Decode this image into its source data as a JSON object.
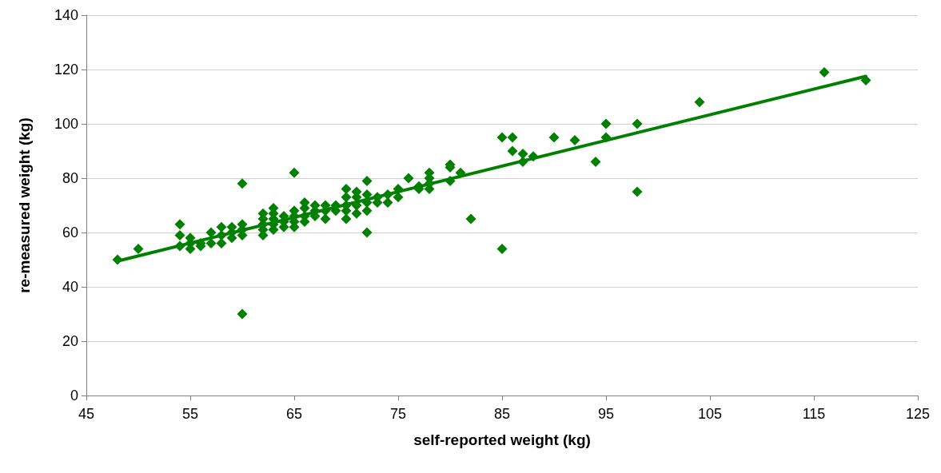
{
  "chart_data": {
    "type": "scatter",
    "xlabel": "self-reported weight (kg)",
    "ylabel": "re-measured weight (kg)",
    "xlim": [
      45,
      125
    ],
    "xticks": [
      45,
      55,
      65,
      75,
      85,
      95,
      105,
      115,
      125
    ],
    "ylim": [
      0,
      140
    ],
    "yticks": [
      0,
      20,
      40,
      60,
      80,
      100,
      120,
      140
    ],
    "grid": "y",
    "series": [
      {
        "color": "#008000",
        "marker": "diamond",
        "x": [
          48,
          50,
          54,
          54,
          54,
          55,
          55,
          55,
          56,
          56,
          57,
          57,
          58,
          58,
          58,
          59,
          59,
          59,
          60,
          60,
          60,
          60,
          60,
          62,
          62,
          62,
          62,
          62,
          63,
          63,
          63,
          63,
          63,
          64,
          64,
          64,
          65,
          65,
          65,
          65,
          65,
          66,
          66,
          66,
          66,
          67,
          67,
          67,
          68,
          68,
          68,
          69,
          69,
          70,
          70,
          70,
          70,
          70,
          71,
          71,
          71,
          71,
          72,
          72,
          72,
          72,
          72,
          73,
          73,
          74,
          74,
          75,
          75,
          76,
          77,
          77,
          78,
          78,
          78,
          78,
          80,
          80,
          80,
          81,
          82,
          85,
          85,
          86,
          86,
          87,
          87,
          88,
          90,
          92,
          94,
          95,
          95,
          98,
          98,
          104,
          116,
          120
        ],
        "values": [
          50,
          54,
          63,
          59,
          55,
          54,
          58,
          56,
          55,
          56,
          56,
          60,
          56,
          59,
          62,
          58,
          60,
          62,
          59,
          61,
          63,
          78,
          30,
          59,
          61,
          63,
          65,
          67,
          61,
          63,
          65,
          67,
          69,
          62,
          64,
          66,
          62,
          64,
          66,
          68,
          82,
          64,
          66,
          69,
          71,
          66,
          68,
          70,
          65,
          68,
          70,
          68,
          70,
          65,
          68,
          70,
          73,
          76,
          67,
          70,
          73,
          75,
          60,
          68,
          71,
          74,
          79,
          71,
          73,
          71,
          74,
          73,
          76,
          80,
          76,
          77,
          76,
          78,
          80,
          82,
          79,
          84,
          85,
          82,
          65,
          54,
          95,
          95,
          90,
          86,
          89,
          88,
          95,
          94,
          86,
          95,
          100,
          100,
          75,
          108,
          119,
          116
        ]
      },
      {
        "type": "line",
        "color": "#008000",
        "marker": "none",
        "line_style": "solid",
        "x": [
          48,
          120
        ],
        "values": [
          49.5,
          117.5
        ]
      }
    ]
  }
}
